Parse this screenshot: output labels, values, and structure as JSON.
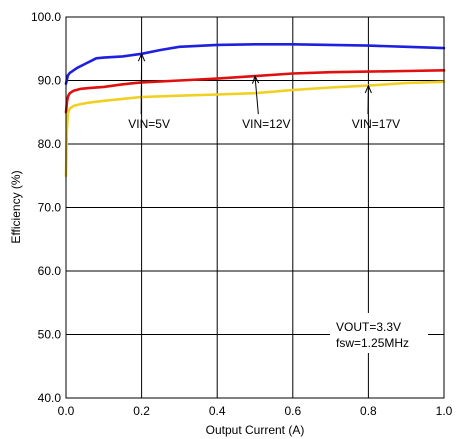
{
  "chart_data": {
    "type": "line",
    "xlabel": "Output Current (A)",
    "ylabel": "Efficiency (%)",
    "xlim": [
      0.0,
      1.0
    ],
    "ylim": [
      40.0,
      100.0
    ],
    "xticks": [
      0.0,
      0.2,
      0.4,
      0.6,
      0.8,
      1.0
    ],
    "xtick_labels": [
      "0.0",
      "0.2",
      "0.4",
      "0.6",
      "0.8",
      "1.0"
    ],
    "yticks": [
      40.0,
      50.0,
      60.0,
      70.0,
      80.0,
      90.0,
      100.0
    ],
    "ytick_labels": [
      "40.0",
      "50.0",
      "60.0",
      "70.0",
      "80.0",
      "90.0",
      "100.0"
    ],
    "grid": true,
    "series": [
      {
        "name": "VIN=5V",
        "color": "#1f1fe0",
        "x": [
          0.0,
          0.005,
          0.01,
          0.02,
          0.03,
          0.05,
          0.07,
          0.08,
          0.1,
          0.15,
          0.2,
          0.25,
          0.3,
          0.4,
          0.5,
          0.6,
          0.7,
          0.8,
          0.9,
          1.0
        ],
        "y": [
          89.5,
          90.8,
          91.2,
          91.6,
          92.0,
          92.6,
          93.2,
          93.5,
          93.6,
          93.8,
          94.2,
          94.8,
          95.3,
          95.6,
          95.7,
          95.7,
          95.6,
          95.5,
          95.3,
          95.1
        ]
      },
      {
        "name": "VIN=12V",
        "color": "#e01010",
        "x": [
          0.0,
          0.003,
          0.006,
          0.01,
          0.02,
          0.04,
          0.06,
          0.1,
          0.15,
          0.2,
          0.3,
          0.4,
          0.5,
          0.6,
          0.7,
          0.8,
          0.9,
          1.0
        ],
        "y": [
          85.0,
          86.8,
          87.6,
          88.0,
          88.4,
          88.7,
          88.8,
          89.0,
          89.4,
          89.7,
          90.0,
          90.3,
          90.7,
          91.1,
          91.3,
          91.4,
          91.5,
          91.6
        ]
      },
      {
        "name": "VIN=17V",
        "color": "#f0d020",
        "x": [
          0.0,
          0.002,
          0.005,
          0.01,
          0.02,
          0.04,
          0.06,
          0.1,
          0.15,
          0.2,
          0.3,
          0.4,
          0.5,
          0.6,
          0.7,
          0.8,
          0.9,
          1.0
        ],
        "y": [
          75.0,
          82.0,
          84.8,
          85.6,
          86.0,
          86.3,
          86.5,
          86.8,
          87.1,
          87.4,
          87.6,
          87.8,
          88.0,
          88.5,
          88.9,
          89.2,
          89.6,
          89.8
        ]
      }
    ],
    "annotations": [
      {
        "text": "VIN=5V",
        "label_x": 0.22,
        "label_y": 82.5,
        "point_x": 0.2,
        "point_y": 94.2
      },
      {
        "text": "VIN=12V",
        "label_x": 0.53,
        "label_y": 82.5,
        "point_x": 0.5,
        "point_y": 90.7
      },
      {
        "text": "VIN=17V",
        "label_x": 0.82,
        "label_y": 82.5,
        "point_x": 0.8,
        "point_y": 89.2
      }
    ],
    "notes": [
      "VOUT=3.3V",
      "fsw=1.25MHz"
    ]
  }
}
